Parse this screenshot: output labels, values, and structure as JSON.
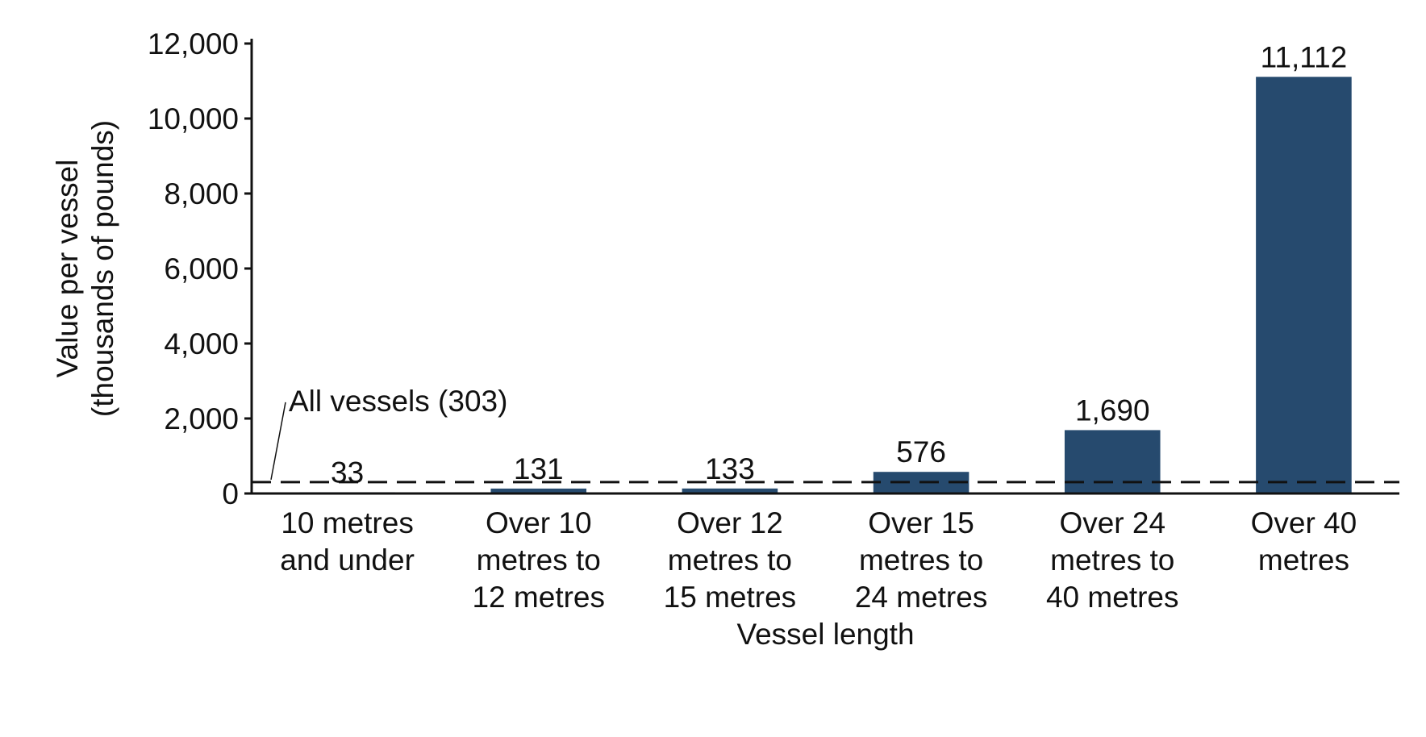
{
  "chart_data": {
    "type": "bar",
    "title": "",
    "xlabel": "Vessel length",
    "ylabel": [
      "Value per vessel",
      "(thousands of pounds)"
    ],
    "ylim": [
      0,
      12000
    ],
    "yticks": [
      0,
      2000,
      4000,
      6000,
      8000,
      10000,
      12000
    ],
    "ytick_labels": [
      "0",
      "2,000",
      "4,000",
      "6,000",
      "8,000",
      "10,000",
      "12,000"
    ],
    "categories": [
      [
        "10 metres",
        "and under"
      ],
      [
        "Over 10",
        "metres to",
        "12 metres"
      ],
      [
        "Over 12",
        "metres to",
        "15 metres"
      ],
      [
        "Over 15",
        "metres to",
        "24 metres"
      ],
      [
        "Over 24",
        "metres to",
        "40 metres"
      ],
      [
        "Over 40",
        "metres"
      ]
    ],
    "values": [
      33,
      131,
      133,
      576,
      1690,
      11112
    ],
    "value_labels": [
      "33",
      "131",
      "133",
      "576",
      "1,690",
      "11,112"
    ],
    "reference_line": {
      "value": 303,
      "label": "All vessels (303)",
      "style": "dashed"
    },
    "bar_color": "#264a6e",
    "grid": false,
    "legend": "none"
  }
}
